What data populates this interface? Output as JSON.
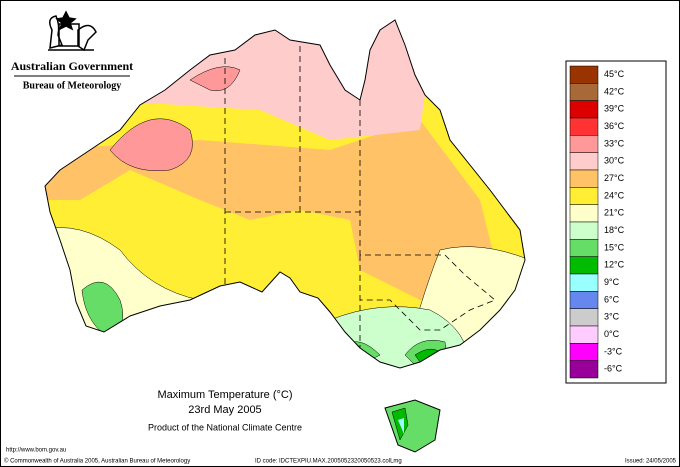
{
  "header": {
    "government": "Australian Government",
    "agency": "Bureau of Meteorology"
  },
  "map": {
    "title": "Maximum Temperature (°C)",
    "date": "23rd May 2005",
    "product": "Product of the National Climate Centre"
  },
  "legend": [
    {
      "label": "45°C",
      "color": "#993300"
    },
    {
      "label": "42°C",
      "color": "#a86838"
    },
    {
      "label": "39°C",
      "color": "#dd0000"
    },
    {
      "label": "36°C",
      "color": "#ff3333"
    },
    {
      "label": "33°C",
      "color": "#ff9999"
    },
    {
      "label": "30°C",
      "color": "#ffcccc"
    },
    {
      "label": "27°C",
      "color": "#ffc266"
    },
    {
      "label": "24°C",
      "color": "#ffee33"
    },
    {
      "label": "21°C",
      "color": "#ffffcc"
    },
    {
      "label": "18°C",
      "color": "#ccffcc"
    },
    {
      "label": "15°C",
      "color": "#66dd66"
    },
    {
      "label": "12°C",
      "color": "#00bb00"
    },
    {
      "label": "9°C",
      "color": "#99ffff"
    },
    {
      "label": "6°C",
      "color": "#6688ee"
    },
    {
      "label": "3°C",
      "color": "#cccccc"
    },
    {
      "label": "0°C",
      "color": "#ffccff"
    },
    {
      "label": "-3°C",
      "color": "#ff00ff"
    },
    {
      "label": "-6°C",
      "color": "#990099"
    }
  ],
  "footer": {
    "url": "http://www.bom.gov.au",
    "copyright": "© Commonwealth of Australia 2005, Australian Bureau of Meteorology",
    "id_code": "ID code: IDCTEXPIU.MAX.2005052320050523.colLmg",
    "issued": "Issued: 24/05/2005"
  }
}
